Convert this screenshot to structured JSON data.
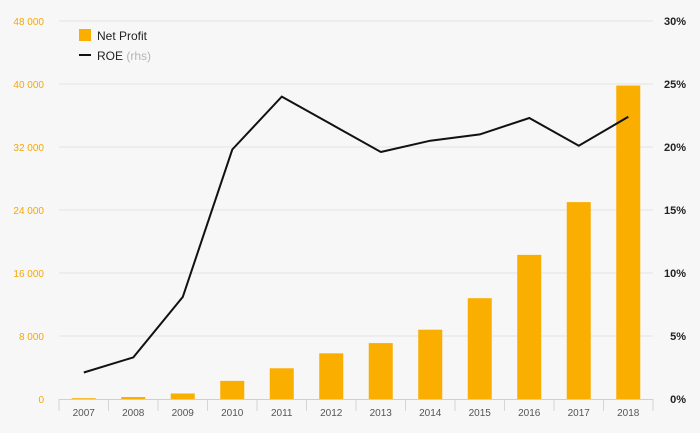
{
  "chart_data": {
    "type": "bar",
    "categories": [
      "2007",
      "2008",
      "2009",
      "2010",
      "2011",
      "2012",
      "2013",
      "2014",
      "2015",
      "2016",
      "2017",
      "2018"
    ],
    "series": [
      {
        "name": "Net Profit",
        "type": "bar",
        "axis": "left",
        "color": "#f9ae00",
        "values": [
          100,
          250,
          700,
          2300,
          3900,
          5800,
          7100,
          8800,
          12800,
          18300,
          25000,
          39800
        ]
      },
      {
        "name": "ROE",
        "name_suffix": "(rhs)",
        "type": "line",
        "axis": "right",
        "color": "#111111",
        "values": [
          2.1,
          3.3,
          8.1,
          19.8,
          24.0,
          21.8,
          19.6,
          20.5,
          21.0,
          22.3,
          20.1,
          22.4
        ]
      }
    ],
    "y_left": {
      "min": 0,
      "max": 48000,
      "ticks": [
        0,
        8000,
        16000,
        24000,
        32000,
        40000,
        48000
      ],
      "tick_labels": [
        "0",
        "8 000",
        "16 000",
        "24 000",
        "32 000",
        "40 000",
        "48 000"
      ]
    },
    "y_right": {
      "min": 0,
      "max": 30,
      "ticks": [
        0,
        5,
        10,
        15,
        20,
        25,
        30
      ],
      "tick_labels": [
        "0%",
        "5%",
        "10%",
        "15%",
        "20%",
        "25%",
        "30%"
      ]
    },
    "grid": true,
    "legend_position": "top-left"
  }
}
